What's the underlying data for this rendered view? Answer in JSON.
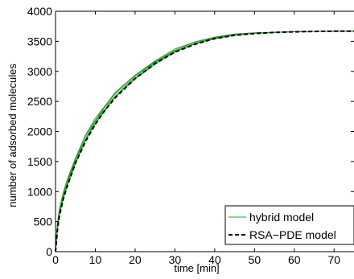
{
  "chart_data": {
    "type": "line",
    "title": "",
    "xlabel": "time [min]",
    "ylabel": "number of adsorbed molecules",
    "xlim": [
      0,
      75
    ],
    "ylim": [
      0,
      4000
    ],
    "xticks": [
      0,
      10,
      20,
      30,
      40,
      50,
      60,
      70
    ],
    "yticks": [
      0,
      500,
      1000,
      1500,
      2000,
      2500,
      3000,
      3500,
      4000
    ],
    "grid": false,
    "legend": {
      "placement": "bottom-right"
    },
    "series": [
      {
        "name": "hybrid model",
        "color": "#2ca02c",
        "style": "solid",
        "runs": 5,
        "x": [
          0,
          0.5,
          1,
          2,
          3,
          5,
          7.5,
          10,
          12.5,
          15,
          20,
          25,
          30,
          35,
          40,
          45,
          50,
          55,
          60,
          65,
          70,
          75
        ],
        "y": [
          0,
          430,
          650,
          930,
          1150,
          1520,
          1880,
          2170,
          2400,
          2600,
          2910,
          3150,
          3340,
          3470,
          3560,
          3610,
          3635,
          3650,
          3660,
          3665,
          3668,
          3670
        ]
      },
      {
        "name": "RSA−PDE model",
        "color": "#000000",
        "style": "dashed",
        "x": [
          0,
          0.5,
          1,
          2,
          3,
          5,
          7.5,
          10,
          12.5,
          15,
          20,
          25,
          30,
          35,
          40,
          45,
          50,
          55,
          60,
          65,
          70,
          75
        ],
        "y": [
          0,
          380,
          600,
          890,
          1100,
          1470,
          1830,
          2120,
          2360,
          2560,
          2880,
          3130,
          3320,
          3450,
          3545,
          3600,
          3630,
          3648,
          3658,
          3664,
          3668,
          3670
        ]
      }
    ]
  }
}
